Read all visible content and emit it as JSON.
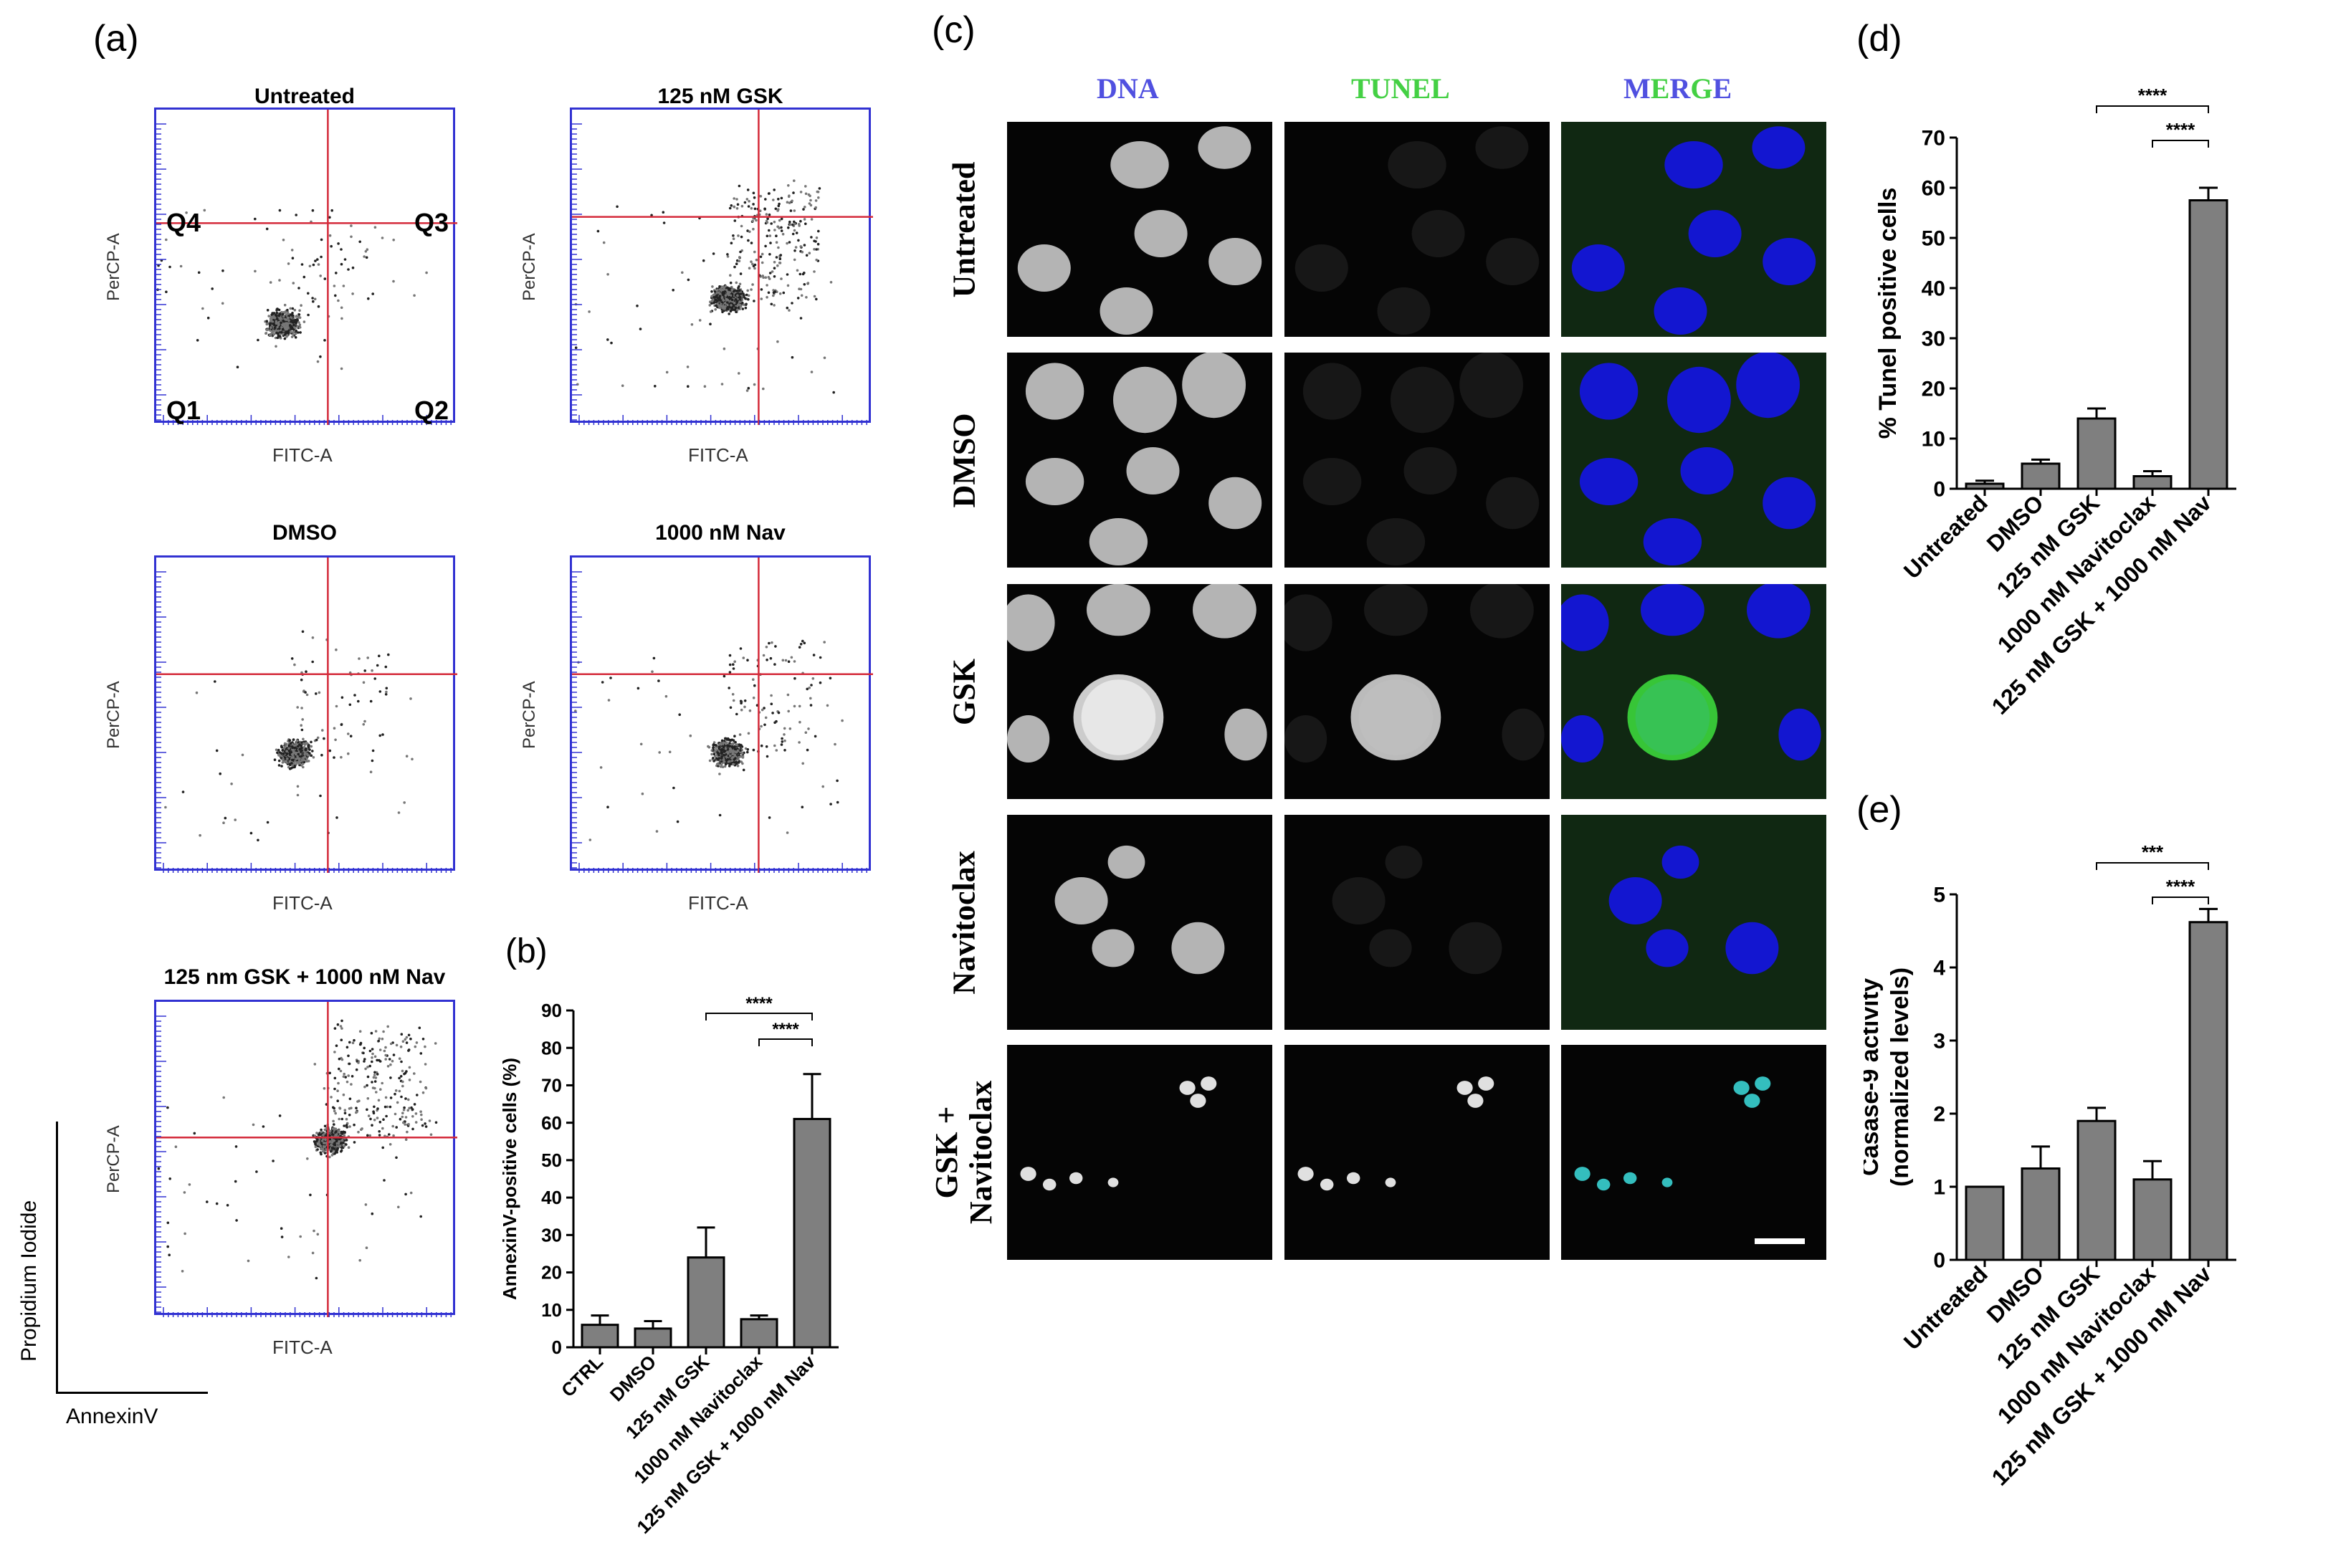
{
  "panels": {
    "a": "(a)",
    "b": "(b)",
    "c": "(c)",
    "d": "(d)",
    "e": "(e)"
  },
  "flow": {
    "xlabel": "FITC-A",
    "ylabel": "PerCP-A",
    "axis_x_label": "AnnexinV",
    "axis_y_label": "Propidium Iodide",
    "quadrants": [
      "Q4",
      "Q3",
      "Q1",
      "Q2"
    ],
    "plots": [
      {
        "title": "Untreated"
      },
      {
        "title": "125 nM GSK"
      },
      {
        "title": "DMSO"
      },
      {
        "title": "1000 nM Nav"
      },
      {
        "title": "125 nm GSK + 1000 nM Nav"
      }
    ]
  },
  "micro": {
    "columns": [
      "DNA",
      "TUNEL",
      "MERGE"
    ],
    "rows": [
      "Untreated",
      "DMSO",
      "GSK",
      "Navitoclax",
      "GSK +\nNavitoclax"
    ],
    "colors": {
      "dna": "#5050e0",
      "tunel": "#44d044",
      "merge_m": "#5050e0",
      "merge_e": "#44d044",
      "merge_r": "#5050e0",
      "merge_g": "#44d044",
      "merge_e2": "#5050e0"
    }
  },
  "chart_data": [
    {
      "id": "b",
      "type": "bar",
      "categories": [
        "CTRL",
        "DMSO",
        "125 nM GSK",
        "1000 nM Navitoclax",
        "125 nM GSK + 1000 nM Nav"
      ],
      "values": [
        6,
        5,
        24,
        7.5,
        61
      ],
      "errors": [
        2.5,
        2,
        8,
        1,
        12
      ],
      "ylabel": "AnnexinV-positive cells (%)",
      "ylim": [
        0,
        90
      ],
      "yticks": [
        0,
        10,
        20,
        30,
        40,
        50,
        60,
        70,
        80,
        90
      ],
      "significance": [
        {
          "from": 2,
          "to": 4,
          "label": "****"
        },
        {
          "from": 3,
          "to": 4,
          "label": "****"
        }
      ],
      "bar_color": "#7f7f7f"
    },
    {
      "id": "d",
      "type": "bar",
      "categories": [
        "Untreated",
        "DMSO",
        "125 nM GSK",
        "1000 nM Navitoclax",
        "125 nM GSK + 1000 nM Nav"
      ],
      "values": [
        1,
        5,
        14,
        2.5,
        57.5
      ],
      "errors": [
        0.6,
        0.8,
        2,
        1,
        2.5
      ],
      "ylabel": "% Tunel positive cells",
      "ylim": [
        0,
        70
      ],
      "yticks": [
        0,
        10,
        20,
        30,
        40,
        50,
        60,
        70
      ],
      "significance": [
        {
          "from": 2,
          "to": 4,
          "label": "****"
        },
        {
          "from": 3,
          "to": 4,
          "label": "****"
        }
      ],
      "bar_color": "#7f7f7f"
    },
    {
      "id": "e",
      "type": "bar",
      "categories": [
        "Untreated",
        "DMSO",
        "125 nM GSK",
        "1000 nM Navitoclax",
        "125 nM GSK + 1000 nM Nav"
      ],
      "values": [
        1,
        1.25,
        1.9,
        1.1,
        4.62
      ],
      "errors": [
        0,
        0.3,
        0.18,
        0.25,
        0.18
      ],
      "ylabel": "Casase-9 activity",
      "ylabel2": "(normalized levels)",
      "ylim": [
        0,
        5
      ],
      "yticks": [
        0,
        1,
        2,
        3,
        4,
        5
      ],
      "significance": [
        {
          "from": 2,
          "to": 4,
          "label": "***"
        },
        {
          "from": 3,
          "to": 4,
          "label": "****"
        }
      ],
      "bar_color": "#7f7f7f"
    }
  ]
}
